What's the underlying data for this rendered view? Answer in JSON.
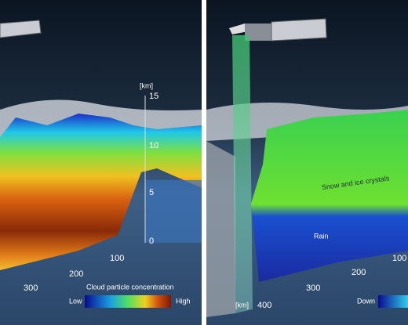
{
  "left_panel": {
    "height_axis": {
      "unit": "[km]",
      "ticks": [
        "15",
        "10",
        "5",
        "0"
      ]
    },
    "distance_ticks": [
      "100",
      "200",
      "300"
    ],
    "legend": {
      "title": "Cloud particle concentration",
      "low": "Low",
      "high": "High"
    }
  },
  "right_panel": {
    "labels": {
      "snow": "Snow and ice crystals",
      "rain": "Rain"
    },
    "distance_unit": "[km]",
    "distance_ticks": [
      "400",
      "300",
      "200",
      "100"
    ],
    "legend": {
      "low": "Down"
    }
  }
}
